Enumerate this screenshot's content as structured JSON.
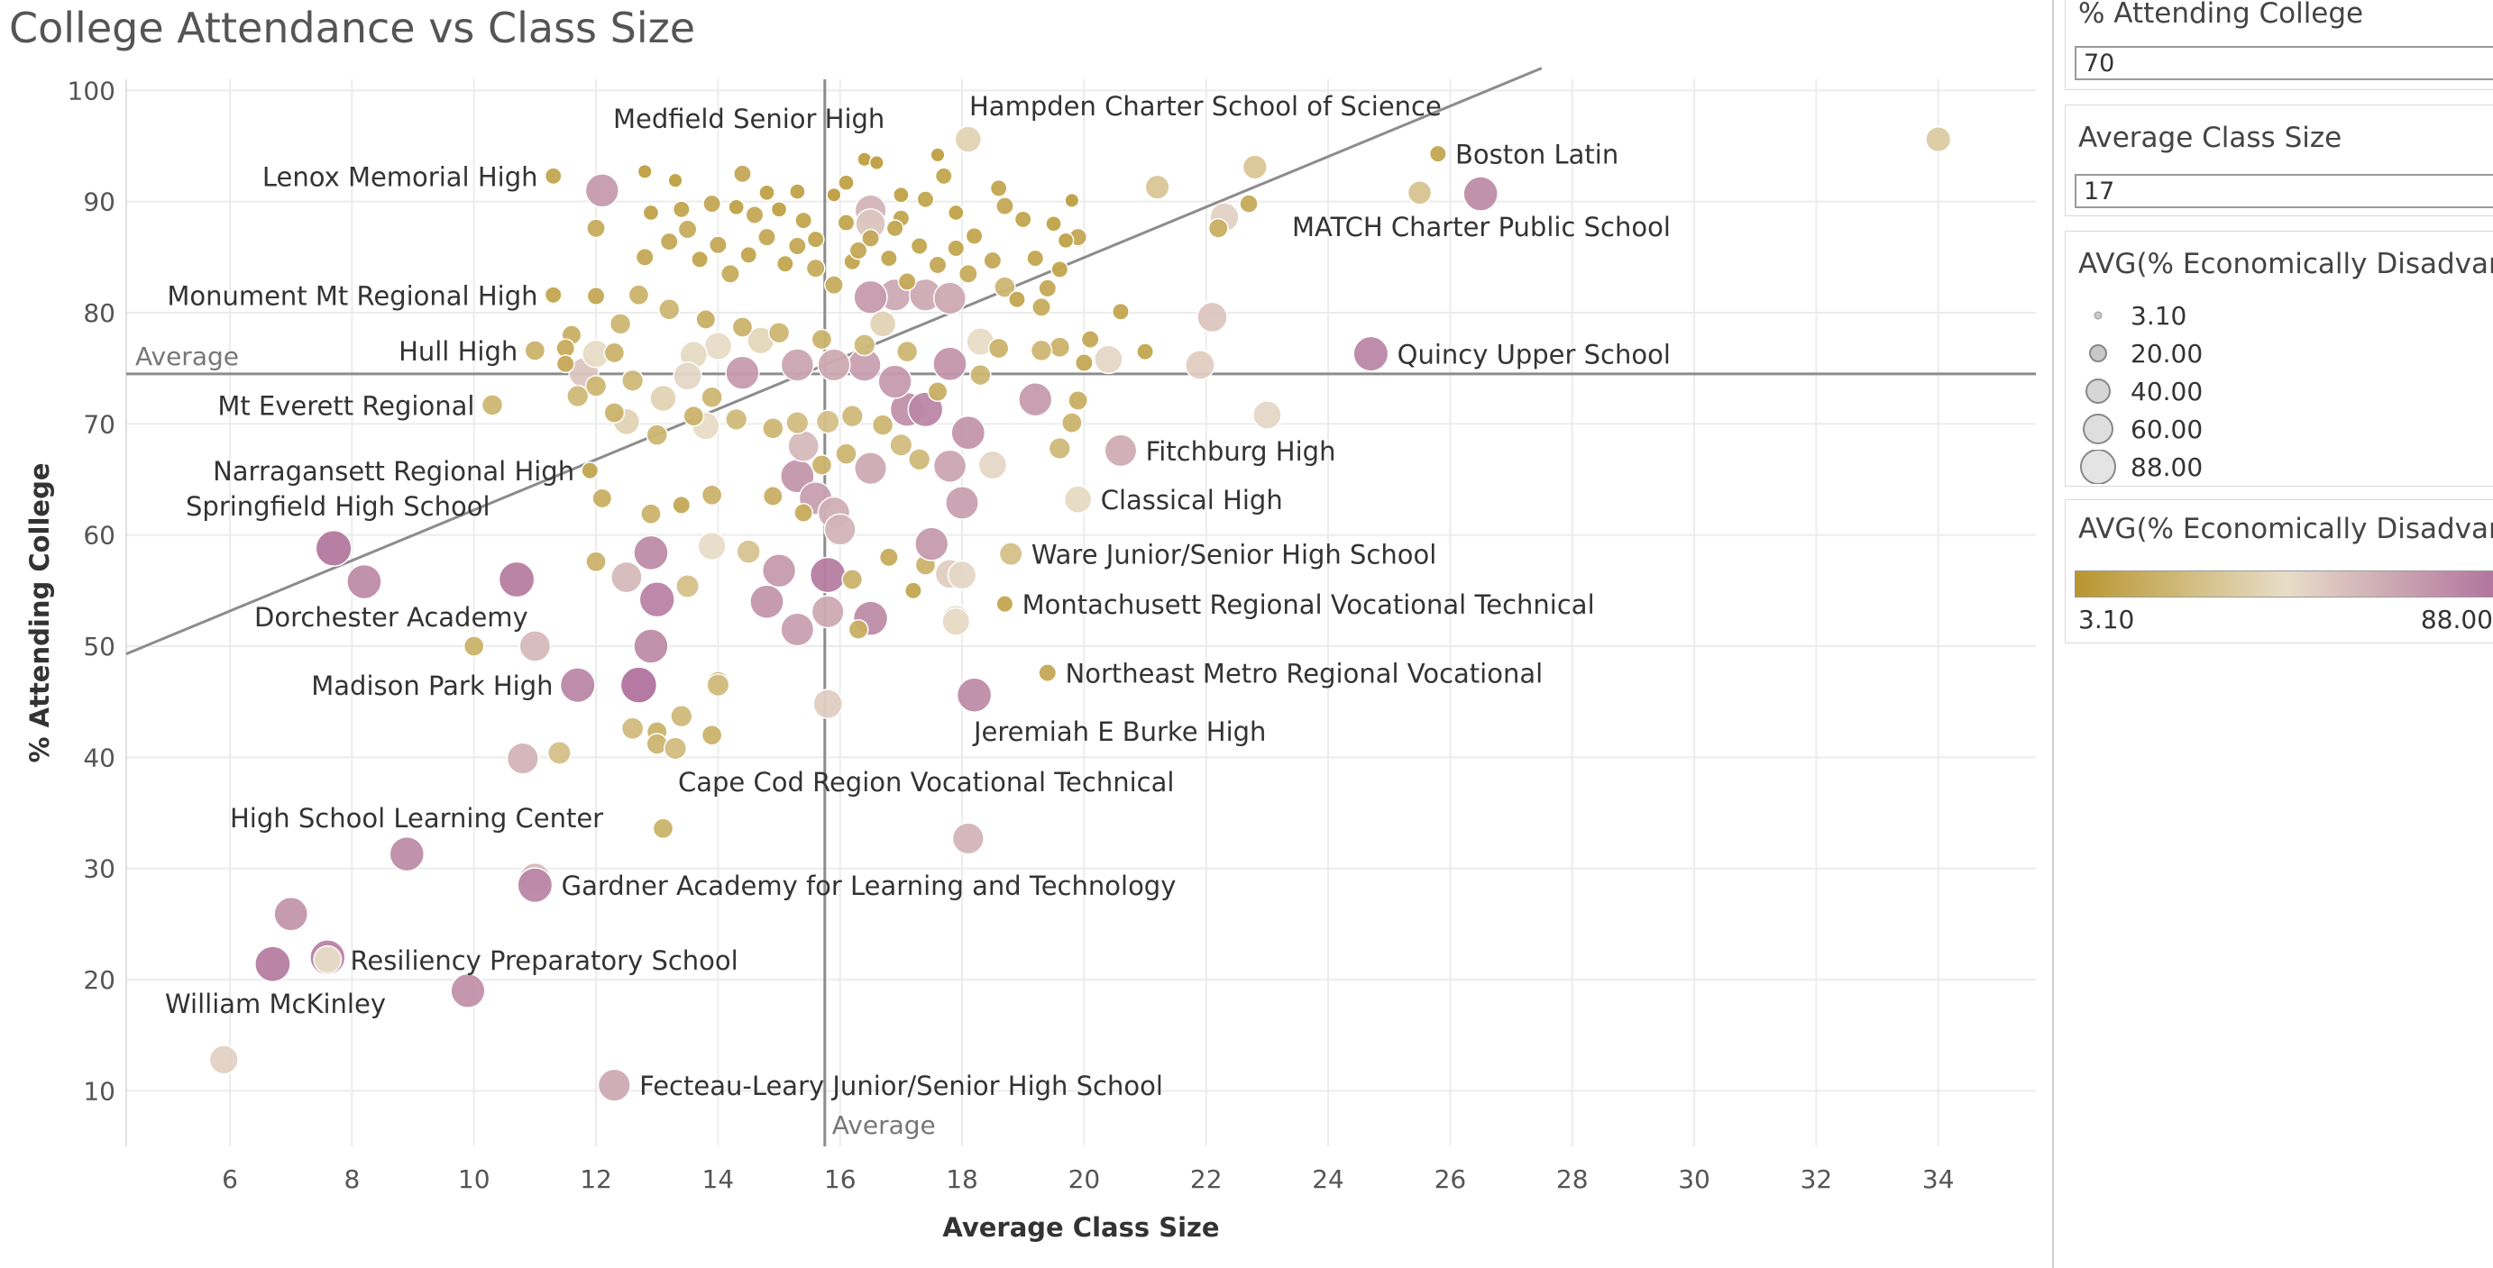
{
  "chart_data": {
    "type": "scatter",
    "title": "College Attendance vs Class Size",
    "xlabel": "Average Class Size",
    "ylabel": "% Attending College",
    "xlim": [
      4.3,
      35.6
    ],
    "ylim": [
      5,
      101
    ],
    "x_ticks": [
      6,
      8,
      10,
      12,
      14,
      16,
      18,
      20,
      22,
      24,
      26,
      28,
      30,
      32,
      34
    ],
    "y_ticks": [
      10,
      20,
      30,
      40,
      50,
      60,
      70,
      80,
      90,
      100
    ],
    "grid": true,
    "reference_lines": {
      "x_average": 15.75,
      "y_average": 74.5,
      "x_average_label": "Average",
      "y_average_label": "Average",
      "trend_line": [
        [
          4.3,
          49.3
        ],
        [
          27.5,
          102
        ]
      ]
    },
    "color_scale": {
      "min": 3.1,
      "max": 88.0,
      "low_color": "#b8962e",
      "mid_color": "#e8ddc8",
      "high_color": "#b1739e"
    },
    "points": [
      {
        "x": 34.0,
        "y": 95.6,
        "e": 35
      },
      {
        "x": 25.8,
        "y": 94.3,
        "e": 12,
        "label": "Boston Latin"
      },
      {
        "x": 26.5,
        "y": 90.7,
        "e": 78
      },
      {
        "x": 25.5,
        "y": 90.8,
        "e": 30,
        "label": "MATCH Charter Public School"
      },
      {
        "x": 22.8,
        "y": 93.1,
        "e": 32
      },
      {
        "x": 22.7,
        "y": 89.8,
        "e": 15
      },
      {
        "x": 22.3,
        "y": 88.6,
        "e": 50
      },
      {
        "x": 22.2,
        "y": 87.6,
        "e": 18
      },
      {
        "x": 21.2,
        "y": 91.3,
        "e": 32
      },
      {
        "x": 18.1,
        "y": 95.6,
        "e": 40
      },
      {
        "x": 17.7,
        "y": 92.3,
        "e": 12,
        "label": "Hampden Charter School of Science"
      },
      {
        "x": 11.3,
        "y": 92.3,
        "e": 12,
        "label": "Lenox Memorial High"
      },
      {
        "x": 14.4,
        "y": 92.5,
        "e": 14,
        "label": "Medfield Senior High"
      },
      {
        "x": 12.1,
        "y": 91.0,
        "e": 72
      },
      {
        "x": 24.7,
        "y": 76.3,
        "e": 80,
        "label": "Quincy Upper School"
      },
      {
        "x": 22.1,
        "y": 79.6,
        "e": 55
      },
      {
        "x": 21.9,
        "y": 75.3,
        "e": 52
      },
      {
        "x": 23.0,
        "y": 70.8,
        "e": 48
      },
      {
        "x": 20.6,
        "y": 67.6,
        "e": 65,
        "label": "Fitchburg High"
      },
      {
        "x": 19.9,
        "y": 63.2,
        "e": 44,
        "label": "Classical High"
      },
      {
        "x": 18.8,
        "y": 58.3,
        "e": 28,
        "label": "Ware Junior/Senior High School"
      },
      {
        "x": 18.7,
        "y": 53.8,
        "e": 12,
        "label": "Montachusett Regional Vocational Technical"
      },
      {
        "x": 19.4,
        "y": 47.6,
        "e": 14,
        "label": "Northeast Metro Regional Vocational"
      },
      {
        "x": 18.2,
        "y": 45.6,
        "e": 78,
        "label": "Jeremiah E Burke High"
      },
      {
        "x": 13.1,
        "y": 33.6,
        "e": 20,
        "label": "Cape Cod Region Vocational Technical"
      },
      {
        "x": 18.1,
        "y": 32.7,
        "e": 62
      },
      {
        "x": 11.3,
        "y": 81.6,
        "e": 12,
        "label": "Monument Mt Regional High"
      },
      {
        "x": 11.0,
        "y": 76.6,
        "e": 20,
        "label": "Hull High"
      },
      {
        "x": 10.3,
        "y": 71.7,
        "e": 22,
        "label": "Mt Everett Regional"
      },
      {
        "x": 11.9,
        "y": 65.8,
        "e": 12,
        "label": "Narragansett Regional High"
      },
      {
        "x": 7.7,
        "y": 58.8,
        "e": 86,
        "label": "Springfield High School"
      },
      {
        "x": 8.2,
        "y": 55.8,
        "e": 78
      },
      {
        "x": 10.7,
        "y": 56.0,
        "e": 84,
        "label": "Dorchester Academy"
      },
      {
        "x": 10.0,
        "y": 50.0,
        "e": 20
      },
      {
        "x": 11.0,
        "y": 50.0,
        "e": 60
      },
      {
        "x": 11.7,
        "y": 46.5,
        "e": 80,
        "label": "Madison Park High"
      },
      {
        "x": 12.7,
        "y": 46.5,
        "e": 88
      },
      {
        "x": 10.8,
        "y": 39.9,
        "e": 62
      },
      {
        "x": 11.4,
        "y": 40.4,
        "e": 28
      },
      {
        "x": 8.9,
        "y": 31.3,
        "e": 78,
        "label": "High School Learning Center"
      },
      {
        "x": 11.0,
        "y": 29.1,
        "e": 60
      },
      {
        "x": 11.0,
        "y": 28.5,
        "e": 80,
        "label": "Gardner Academy for Learning and Technology"
      },
      {
        "x": 7.0,
        "y": 25.9,
        "e": 74
      },
      {
        "x": 6.7,
        "y": 21.4,
        "e": 84
      },
      {
        "x": 7.6,
        "y": 22.0,
        "e": 82
      },
      {
        "x": 7.6,
        "y": 21.8,
        "e": 45,
        "label": "Resiliency Preparatory School"
      },
      {
        "x": 9.9,
        "y": 19.0,
        "e": 76,
        "label": "William McKinley"
      },
      {
        "x": 5.9,
        "y": 12.8,
        "e": 50
      },
      {
        "x": 12.3,
        "y": 10.5,
        "e": 66,
        "label": "Fecteau-Leary Junior/Senior High School"
      },
      {
        "x": 12.5,
        "y": 56.2,
        "e": 60
      },
      {
        "x": 12.9,
        "y": 58.4,
        "e": 78
      },
      {
        "x": 13.0,
        "y": 54.2,
        "e": 82
      },
      {
        "x": 12.9,
        "y": 50.0,
        "e": 78
      },
      {
        "x": 12.0,
        "y": 57.6,
        "e": 20
      },
      {
        "x": 13.5,
        "y": 55.4,
        "e": 28
      },
      {
        "x": 13.9,
        "y": 59.0,
        "e": 46
      },
      {
        "x": 12.6,
        "y": 42.6,
        "e": 25
      },
      {
        "x": 13.0,
        "y": 42.3,
        "e": 20
      },
      {
        "x": 13.0,
        "y": 41.2,
        "e": 22
      },
      {
        "x": 13.3,
        "y": 40.8,
        "e": 26
      },
      {
        "x": 13.4,
        "y": 43.7,
        "e": 24
      },
      {
        "x": 13.9,
        "y": 42.0,
        "e": 20
      },
      {
        "x": 14.0,
        "y": 46.8,
        "e": 22
      },
      {
        "x": 14.0,
        "y": 46.5,
        "e": 26
      },
      {
        "x": 15.8,
        "y": 44.8,
        "e": 52
      },
      {
        "x": 14.8,
        "y": 54.0,
        "e": 74
      },
      {
        "x": 15.0,
        "y": 56.8,
        "e": 72
      },
      {
        "x": 15.3,
        "y": 51.5,
        "e": 70
      },
      {
        "x": 15.8,
        "y": 53.1,
        "e": 66
      },
      {
        "x": 15.8,
        "y": 56.4,
        "e": 84
      },
      {
        "x": 16.5,
        "y": 52.5,
        "e": 78
      },
      {
        "x": 14.5,
        "y": 58.5,
        "e": 30
      },
      {
        "x": 15.3,
        "y": 65.3,
        "e": 74
      },
      {
        "x": 15.6,
        "y": 63.3,
        "e": 70
      },
      {
        "x": 15.9,
        "y": 62.0,
        "e": 64
      },
      {
        "x": 16.0,
        "y": 60.5,
        "e": 62
      },
      {
        "x": 15.4,
        "y": 68.0,
        "e": 60
      },
      {
        "x": 16.5,
        "y": 66.0,
        "e": 66
      },
      {
        "x": 16.2,
        "y": 56.0,
        "e": 20
      },
      {
        "x": 16.3,
        "y": 51.5,
        "e": 18
      },
      {
        "x": 16.8,
        "y": 58.0,
        "e": 16
      },
      {
        "x": 17.2,
        "y": 55.0,
        "e": 12
      },
      {
        "x": 17.4,
        "y": 57.3,
        "e": 20
      },
      {
        "x": 17.5,
        "y": 59.2,
        "e": 72
      },
      {
        "x": 17.8,
        "y": 56.5,
        "e": 52
      },
      {
        "x": 17.9,
        "y": 52.4,
        "e": 48
      },
      {
        "x": 18.0,
        "y": 62.9,
        "e": 70
      },
      {
        "x": 17.8,
        "y": 66.2,
        "e": 68
      },
      {
        "x": 18.5,
        "y": 66.3,
        "e": 48
      },
      {
        "x": 18.1,
        "y": 69.2,
        "e": 74
      },
      {
        "x": 17.1,
        "y": 71.3,
        "e": 76
      },
      {
        "x": 17.4,
        "y": 71.3,
        "e": 80
      },
      {
        "x": 16.9,
        "y": 73.8,
        "e": 72
      },
      {
        "x": 17.8,
        "y": 75.4,
        "e": 74
      },
      {
        "x": 16.4,
        "y": 75.3,
        "e": 70
      },
      {
        "x": 15.9,
        "y": 75.3,
        "e": 66
      },
      {
        "x": 15.3,
        "y": 75.3,
        "e": 68
      },
      {
        "x": 14.4,
        "y": 74.6,
        "e": 72
      },
      {
        "x": 19.2,
        "y": 72.2,
        "e": 72
      },
      {
        "x": 16.9,
        "y": 81.6,
        "e": 66
      },
      {
        "x": 16.5,
        "y": 81.4,
        "e": 72
      },
      {
        "x": 17.4,
        "y": 81.6,
        "e": 66
      },
      {
        "x": 17.8,
        "y": 81.3,
        "e": 66
      },
      {
        "x": 16.5,
        "y": 89.2,
        "e": 62
      },
      {
        "x": 16.5,
        "y": 88.0,
        "e": 55
      },
      {
        "x": 14.0,
        "y": 77.0,
        "e": 45
      },
      {
        "x": 13.6,
        "y": 76.2,
        "e": 44
      },
      {
        "x": 13.5,
        "y": 74.3,
        "e": 48
      },
      {
        "x": 13.8,
        "y": 69.8,
        "e": 45
      },
      {
        "x": 13.1,
        "y": 72.3,
        "e": 40
      },
      {
        "x": 12.5,
        "y": 70.2,
        "e": 40
      },
      {
        "x": 11.8,
        "y": 74.6,
        "e": 55
      },
      {
        "x": 12.0,
        "y": 76.3,
        "e": 45
      },
      {
        "x": 18.3,
        "y": 77.4,
        "e": 45
      },
      {
        "x": 20.4,
        "y": 75.8,
        "e": 48
      },
      {
        "x": 16.7,
        "y": 79.0,
        "e": 40
      },
      {
        "x": 18.0,
        "y": 56.4,
        "e": 48
      },
      {
        "x": 17.9,
        "y": 52.2,
        "e": 45
      },
      {
        "x": 14.7,
        "y": 77.5,
        "e": 42
      },
      {
        "x": 12.4,
        "y": 79.0,
        "e": 22
      },
      {
        "x": 12.3,
        "y": 76.4,
        "e": 20
      },
      {
        "x": 12.0,
        "y": 73.4,
        "e": 22
      },
      {
        "x": 11.7,
        "y": 72.5,
        "e": 24
      },
      {
        "x": 12.3,
        "y": 71.0,
        "e": 20
      },
      {
        "x": 12.6,
        "y": 73.9,
        "e": 24
      },
      {
        "x": 13.0,
        "y": 69.0,
        "e": 22
      },
      {
        "x": 13.6,
        "y": 70.7,
        "e": 20
      },
      {
        "x": 13.9,
        "y": 72.4,
        "e": 22
      },
      {
        "x": 14.3,
        "y": 70.4,
        "e": 24
      },
      {
        "x": 14.9,
        "y": 69.6,
        "e": 22
      },
      {
        "x": 15.3,
        "y": 70.1,
        "e": 26
      },
      {
        "x": 15.8,
        "y": 70.2,
        "e": 28
      },
      {
        "x": 16.2,
        "y": 70.7,
        "e": 24
      },
      {
        "x": 16.7,
        "y": 69.9,
        "e": 22
      },
      {
        "x": 17.0,
        "y": 68.1,
        "e": 26
      },
      {
        "x": 17.3,
        "y": 66.8,
        "e": 24
      },
      {
        "x": 16.1,
        "y": 67.3,
        "e": 22
      },
      {
        "x": 15.7,
        "y": 66.3,
        "e": 20
      },
      {
        "x": 14.9,
        "y": 63.5,
        "e": 18
      },
      {
        "x": 15.4,
        "y": 62.0,
        "e": 16
      },
      {
        "x": 13.9,
        "y": 63.6,
        "e": 20
      },
      {
        "x": 13.4,
        "y": 62.7,
        "e": 14
      },
      {
        "x": 12.9,
        "y": 61.9,
        "e": 20
      },
      {
        "x": 12.1,
        "y": 63.3,
        "e": 18
      },
      {
        "x": 19.8,
        "y": 70.1,
        "e": 20
      },
      {
        "x": 19.6,
        "y": 67.8,
        "e": 24
      },
      {
        "x": 19.9,
        "y": 72.1,
        "e": 18
      },
      {
        "x": 19.6,
        "y": 76.9,
        "e": 20
      },
      {
        "x": 20.0,
        "y": 75.5,
        "e": 14
      },
      {
        "x": 21.0,
        "y": 76.5,
        "e": 12
      },
      {
        "x": 20.6,
        "y": 80.1,
        "e": 12
      },
      {
        "x": 20.1,
        "y": 77.6,
        "e": 14
      },
      {
        "x": 19.3,
        "y": 76.6,
        "e": 22
      },
      {
        "x": 18.6,
        "y": 76.8,
        "e": 20
      },
      {
        "x": 18.3,
        "y": 74.4,
        "e": 22
      },
      {
        "x": 17.6,
        "y": 72.9,
        "e": 18
      },
      {
        "x": 17.1,
        "y": 76.5,
        "e": 22
      },
      {
        "x": 16.4,
        "y": 77.1,
        "e": 24
      },
      {
        "x": 15.7,
        "y": 77.6,
        "e": 20
      },
      {
        "x": 15.0,
        "y": 78.2,
        "e": 22
      },
      {
        "x": 14.4,
        "y": 78.7,
        "e": 20
      },
      {
        "x": 13.8,
        "y": 79.4,
        "e": 18
      },
      {
        "x": 13.2,
        "y": 80.3,
        "e": 22
      },
      {
        "x": 12.7,
        "y": 81.6,
        "e": 20
      },
      {
        "x": 11.6,
        "y": 78.0,
        "e": 18
      },
      {
        "x": 11.5,
        "y": 76.8,
        "e": 16
      },
      {
        "x": 11.5,
        "y": 75.4,
        "e": 14
      },
      {
        "x": 12.0,
        "y": 81.5,
        "e": 14
      },
      {
        "x": 12.0,
        "y": 87.6,
        "e": 16
      },
      {
        "x": 12.8,
        "y": 85.0,
        "e": 14
      },
      {
        "x": 13.2,
        "y": 86.4,
        "e": 14
      },
      {
        "x": 13.5,
        "y": 87.5,
        "e": 16
      },
      {
        "x": 13.7,
        "y": 84.8,
        "e": 12
      },
      {
        "x": 14.0,
        "y": 86.1,
        "e": 14
      },
      {
        "x": 14.2,
        "y": 83.5,
        "e": 16
      },
      {
        "x": 14.5,
        "y": 85.2,
        "e": 12
      },
      {
        "x": 14.8,
        "y": 86.8,
        "e": 14
      },
      {
        "x": 15.1,
        "y": 84.4,
        "e": 12
      },
      {
        "x": 15.3,
        "y": 86.0,
        "e": 14
      },
      {
        "x": 15.6,
        "y": 84.0,
        "e": 16
      },
      {
        "x": 15.9,
        "y": 82.5,
        "e": 16
      },
      {
        "x": 16.2,
        "y": 84.6,
        "e": 12
      },
      {
        "x": 16.5,
        "y": 86.7,
        "e": 14
      },
      {
        "x": 16.8,
        "y": 84.9,
        "e": 12
      },
      {
        "x": 17.1,
        "y": 82.8,
        "e": 14
      },
      {
        "x": 17.3,
        "y": 86.0,
        "e": 12
      },
      {
        "x": 17.6,
        "y": 84.3,
        "e": 14
      },
      {
        "x": 17.9,
        "y": 85.8,
        "e": 12
      },
      {
        "x": 18.1,
        "y": 83.5,
        "e": 16
      },
      {
        "x": 18.5,
        "y": 84.7,
        "e": 14
      },
      {
        "x": 18.7,
        "y": 82.3,
        "e": 22
      },
      {
        "x": 19.2,
        "y": 84.9,
        "e": 12
      },
      {
        "x": 19.6,
        "y": 83.9,
        "e": 12
      },
      {
        "x": 19.9,
        "y": 86.8,
        "e": 14
      },
      {
        "x": 18.2,
        "y": 86.9,
        "e": 12
      },
      {
        "x": 17.0,
        "y": 88.5,
        "e": 12
      },
      {
        "x": 16.3,
        "y": 85.6,
        "e": 14
      },
      {
        "x": 15.4,
        "y": 88.3,
        "e": 12
      },
      {
        "x": 14.6,
        "y": 88.8,
        "e": 14
      },
      {
        "x": 13.9,
        "y": 89.8,
        "e": 14
      },
      {
        "x": 13.4,
        "y": 89.3,
        "e": 12
      },
      {
        "x": 12.9,
        "y": 89.0,
        "e": 10
      },
      {
        "x": 12.8,
        "y": 92.7,
        "e": 8
      },
      {
        "x": 13.3,
        "y": 91.9,
        "e": 8
      },
      {
        "x": 15.3,
        "y": 90.9,
        "e": 10
      },
      {
        "x": 15.9,
        "y": 90.6,
        "e": 8
      },
      {
        "x": 16.4,
        "y": 93.8,
        "e": 8
      },
      {
        "x": 16.6,
        "y": 93.5,
        "e": 8
      },
      {
        "x": 17.6,
        "y": 94.2,
        "e": 8
      },
      {
        "x": 18.6,
        "y": 91.2,
        "e": 12
      },
      {
        "x": 18.7,
        "y": 89.6,
        "e": 14
      },
      {
        "x": 19.0,
        "y": 88.4,
        "e": 12
      },
      {
        "x": 19.5,
        "y": 88.0,
        "e": 10
      },
      {
        "x": 19.8,
        "y": 90.1,
        "e": 8
      },
      {
        "x": 19.7,
        "y": 86.5,
        "e": 10
      },
      {
        "x": 19.4,
        "y": 82.2,
        "e": 14
      },
      {
        "x": 19.3,
        "y": 80.5,
        "e": 16
      },
      {
        "x": 18.9,
        "y": 81.2,
        "e": 12
      },
      {
        "x": 17.9,
        "y": 89.0,
        "e": 10
      },
      {
        "x": 17.4,
        "y": 90.2,
        "e": 12
      },
      {
        "x": 17.0,
        "y": 90.6,
        "e": 10
      },
      {
        "x": 16.1,
        "y": 91.7,
        "e": 10
      },
      {
        "x": 14.8,
        "y": 90.8,
        "e": 10
      },
      {
        "x": 14.3,
        "y": 89.5,
        "e": 10
      },
      {
        "x": 15.0,
        "y": 89.3,
        "e": 10
      },
      {
        "x": 16.9,
        "y": 87.6,
        "e": 12
      },
      {
        "x": 16.1,
        "y": 88.1,
        "e": 12
      },
      {
        "x": 15.6,
        "y": 86.6,
        "e": 12
      }
    ]
  },
  "legend": {
    "filter_attending": {
      "title": "% Attending College",
      "value": "70"
    },
    "filter_class_size": {
      "title": "Average Class Size",
      "value": "17"
    },
    "size_legend": {
      "title": "AVG(% Economically Disadvan...",
      "items": [
        "3.10",
        "20.00",
        "40.00",
        "60.00",
        "88.00"
      ]
    },
    "color_legend": {
      "title": "AVG(% Economically Disadvan...",
      "min_label": "3.10",
      "max_label": "88.00"
    }
  },
  "colors": {
    "gold": "#b8962e",
    "light": "#e8ddc8",
    "mauve": "#b1739e",
    "axis_text": "#555555",
    "grid": "#ececec",
    "ref_line": "#8c8c8c"
  }
}
